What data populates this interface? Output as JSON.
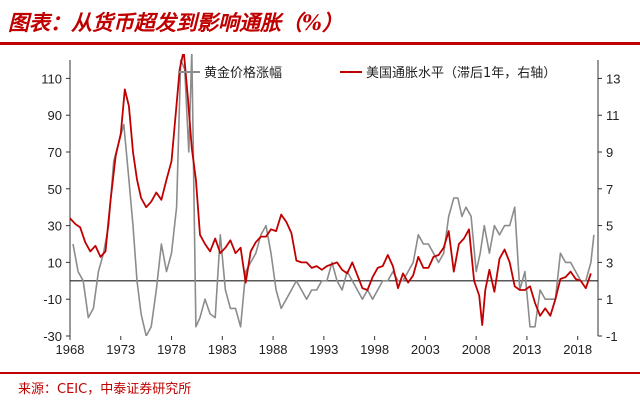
{
  "header": {
    "title": "图表：从货币超发到影响通胀（%）"
  },
  "footer": {
    "source": "来源：CEIC，中泰证券研究所"
  },
  "colors": {
    "brand": "#c00000",
    "gold_series": "#8c8c8c",
    "inflation_series": "#c00000"
  },
  "chart_data": {
    "type": "line",
    "title": "",
    "grid": false,
    "legend_position": "top",
    "x_ticks": [
      "1968",
      "1973",
      "1978",
      "1983",
      "1988",
      "1993",
      "1998",
      "2003",
      "2008",
      "2013",
      "2018"
    ],
    "xlim": [
      1968,
      2020
    ],
    "y_left": {
      "lim": [
        -30,
        120
      ],
      "ticks": [
        "110",
        "90",
        "70",
        "50",
        "30",
        "10",
        "-10",
        "-30"
      ]
    },
    "y_right": {
      "lim": [
        -1,
        14
      ],
      "ticks": [
        "13",
        "11",
        "9",
        "7",
        "5",
        "3",
        "1",
        "-1"
      ]
    },
    "series": [
      {
        "name": "黄金价格涨幅",
        "axis": "left",
        "color": "#8c8c8c",
        "x": [
          1968.3,
          1968.8,
          1969.3,
          1969.8,
          1970.3,
          1970.8,
          1971.3,
          1971.8,
          1972.3,
          1972.8,
          1973.3,
          1973.8,
          1974.2,
          1974.6,
          1975.0,
          1975.5,
          1976.0,
          1976.5,
          1977.0,
          1977.5,
          1978.0,
          1978.5,
          1978.9,
          1979.3,
          1979.7,
          1980.0,
          1980.4,
          1980.8,
          1981.3,
          1981.8,
          1982.3,
          1982.8,
          1983.3,
          1983.8,
          1984.3,
          1984.8,
          1985.3,
          1985.8,
          1986.3,
          1986.8,
          1987.3,
          1987.8,
          1988.3,
          1988.8,
          1989.3,
          1989.8,
          1990.3,
          1990.8,
          1991.3,
          1991.8,
          1992.3,
          1992.8,
          1993.3,
          1993.8,
          1994.3,
          1994.8,
          1995.3,
          1995.8,
          1996.3,
          1996.8,
          1997.3,
          1997.8,
          1998.3,
          1998.8,
          1999.3,
          1999.8,
          2000.3,
          2000.8,
          2001.3,
          2001.8,
          2002.3,
          2002.8,
          2003.3,
          2003.8,
          2004.3,
          2004.8,
          2005.3,
          2005.8,
          2006.2,
          2006.6,
          2007.0,
          2007.5,
          2008.0,
          2008.4,
          2008.8,
          2009.3,
          2009.8,
          2010.3,
          2010.8,
          2011.3,
          2011.8,
          2012.3,
          2012.8,
          2013.3,
          2013.8,
          2014.3,
          2014.8,
          2015.3,
          2015.8,
          2016.3,
          2016.8,
          2017.3,
          2017.8,
          2018.3,
          2018.8,
          2019.3,
          2019.6
        ],
        "values": [
          20,
          5,
          0,
          -20,
          -15,
          5,
          15,
          30,
          65,
          75,
          85,
          55,
          30,
          0,
          -18,
          -30,
          -25,
          -5,
          20,
          5,
          15,
          40,
          120,
          115,
          70,
          125,
          -25,
          -20,
          -10,
          -18,
          -20,
          25,
          -5,
          -15,
          -15,
          -25,
          5,
          10,
          15,
          25,
          30,
          15,
          -5,
          -15,
          -10,
          -5,
          0,
          -5,
          -10,
          -5,
          -5,
          0,
          0,
          10,
          0,
          -5,
          5,
          0,
          -5,
          -10,
          -5,
          -10,
          -5,
          0,
          0,
          5,
          0,
          0,
          5,
          10,
          25,
          20,
          20,
          15,
          10,
          15,
          35,
          45,
          45,
          35,
          40,
          35,
          5,
          15,
          30,
          15,
          30,
          25,
          30,
          30,
          40,
          -5,
          5,
          -25,
          -25,
          -5,
          -10,
          -10,
          -10,
          15,
          10,
          10,
          5,
          0,
          0,
          10,
          25
        ]
      },
      {
        "name": "美国通胀水平（滞后1年，右轴）",
        "axis": "right",
        "color": "#c00000",
        "x": [
          1968.0,
          1968.5,
          1969.0,
          1969.5,
          1970.0,
          1970.5,
          1971.0,
          1971.5,
          1972.0,
          1972.5,
          1973.0,
          1973.4,
          1973.8,
          1974.2,
          1974.6,
          1975.0,
          1975.5,
          1976.0,
          1976.5,
          1977.0,
          1977.5,
          1978.0,
          1978.4,
          1978.8,
          1979.2,
          1979.6,
          1980.0,
          1980.4,
          1980.8,
          1981.3,
          1981.8,
          1982.3,
          1982.8,
          1983.3,
          1983.8,
          1984.3,
          1984.8,
          1985.3,
          1985.8,
          1986.3,
          1986.8,
          1987.3,
          1987.8,
          1988.3,
          1988.8,
          1989.3,
          1989.8,
          1990.3,
          1990.8,
          1991.3,
          1991.8,
          1992.3,
          1992.8,
          1993.3,
          1993.8,
          1994.3,
          1994.8,
          1995.3,
          1995.8,
          1996.3,
          1996.8,
          1997.3,
          1997.8,
          1998.3,
          1998.8,
          1999.3,
          1999.8,
          2000.3,
          2000.8,
          2001.3,
          2001.8,
          2002.3,
          2002.8,
          2003.3,
          2003.8,
          2004.3,
          2004.8,
          2005.3,
          2005.8,
          2006.3,
          2006.8,
          2007.3,
          2007.8,
          2008.3,
          2008.6,
          2008.9,
          2009.3,
          2009.8,
          2010.3,
          2010.8,
          2011.3,
          2011.8,
          2012.3,
          2012.8,
          2013.3,
          2013.8,
          2014.3,
          2014.8,
          2015.3,
          2015.8,
          2016.3,
          2016.8,
          2017.3,
          2017.8,
          2018.3,
          2018.8,
          2019.3
        ],
        "values": [
          5.4,
          5.1,
          4.9,
          4.1,
          3.6,
          3.9,
          3.3,
          3.6,
          6.4,
          8.8,
          10.0,
          12.4,
          11.5,
          9.0,
          7.5,
          6.5,
          6.0,
          6.3,
          6.8,
          6.4,
          7.5,
          8.5,
          11.0,
          13.5,
          14.5,
          12.0,
          9.2,
          7.5,
          4.5,
          4.0,
          3.6,
          4.3,
          3.5,
          3.8,
          4.2,
          3.5,
          3.8,
          1.9,
          3.6,
          4.1,
          4.4,
          4.4,
          4.8,
          4.7,
          5.6,
          5.2,
          4.6,
          3.1,
          3.0,
          3.0,
          2.7,
          2.8,
          2.6,
          2.8,
          2.9,
          3.0,
          2.6,
          2.4,
          3.0,
          2.3,
          1.6,
          1.5,
          2.2,
          2.7,
          2.8,
          3.4,
          2.8,
          1.6,
          2.4,
          1.9,
          2.3,
          3.3,
          2.7,
          2.7,
          3.3,
          3.4,
          3.8,
          4.7,
          2.5,
          4.0,
          4.3,
          4.8,
          2.0,
          1.2,
          -0.4,
          1.5,
          2.6,
          1.4,
          3.2,
          3.7,
          3.0,
          1.7,
          1.5,
          1.5,
          1.7,
          0.8,
          0.1,
          0.5,
          0.1,
          1.0,
          2.1,
          2.2,
          2.5,
          2.1,
          2.0,
          1.6,
          2.4
        ]
      }
    ]
  }
}
